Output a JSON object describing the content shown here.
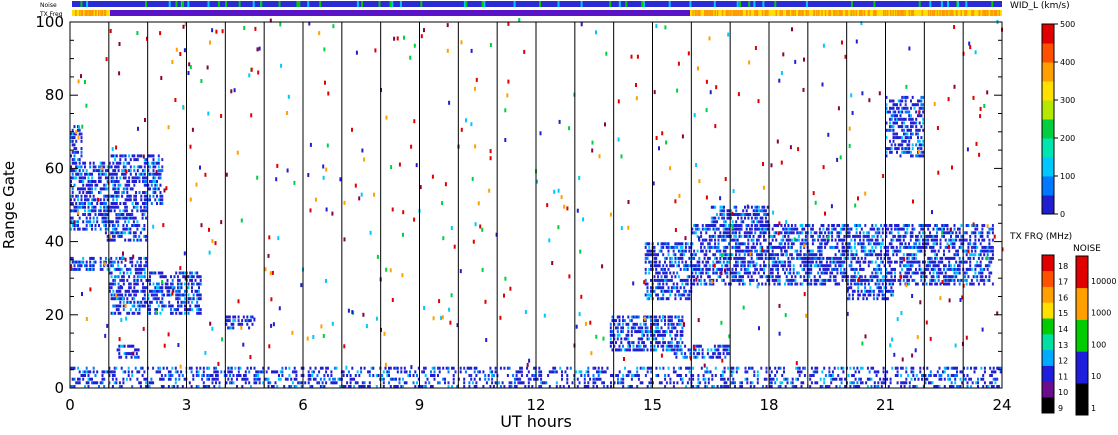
{
  "chart_data": {
    "type": "heatmap",
    "title": "",
    "xlabel": "UT hours",
    "ylabel": "Range Gate",
    "xlim": [
      0,
      24
    ],
    "ylim": [
      0,
      100
    ],
    "x_ticks": [
      0,
      3,
      6,
      9,
      12,
      15,
      18,
      21,
      24
    ],
    "y_ticks": [
      0,
      20,
      40,
      60,
      80,
      100
    ],
    "strips": [
      {
        "label": "Noise",
        "color": "#2b2bd6"
      },
      {
        "label": "TX Freq",
        "color": "#ffe000",
        "low_color": "#ff9900",
        "mid_color": "#5a14c8"
      }
    ],
    "width_colorbar": {
      "title": "WID_L (km/s)",
      "range": [
        0,
        500
      ],
      "ticks": [
        0,
        100,
        200,
        300,
        400,
        500
      ],
      "colors": [
        "#1f1fd0",
        "#0078ff",
        "#00c8ff",
        "#00e6b0",
        "#00d040",
        "#b4e800",
        "#ffe000",
        "#ffa000",
        "#ff5000",
        "#e00000"
      ]
    },
    "freq_colorbar": {
      "title": "TX FRQ (MHz)",
      "levels": [
        "9",
        "10",
        "11",
        "12",
        "13",
        "14",
        "15",
        "16",
        "17",
        "18"
      ],
      "colors": [
        "#000000",
        "#6a0d8c",
        "#1e1edc",
        "#00aaff",
        "#00e0a0",
        "#00cc00",
        "#ffe000",
        "#ffa000",
        "#ff5000",
        "#e00000"
      ]
    },
    "noise_colorbar": {
      "title": "NOISE",
      "levels": [
        "1",
        "10",
        "100",
        "1000",
        "10000"
      ],
      "colors": [
        "#000000",
        "#1e1edc",
        "#00cc00",
        "#ffa000",
        "#e00000"
      ]
    },
    "echo_regions": [
      {
        "t": [
          0.0,
          0.3
        ],
        "g": [
          58,
          72
        ]
      },
      {
        "t": [
          0.0,
          1.0
        ],
        "g": [
          43,
          62
        ]
      },
      {
        "t": [
          0.0,
          2.0
        ],
        "g": [
          32,
          36
        ]
      },
      {
        "t": [
          0.9,
          2.0
        ],
        "g": [
          40,
          50
        ]
      },
      {
        "t": [
          1.0,
          2.4
        ],
        "g": [
          50,
          64
        ]
      },
      {
        "t": [
          1.0,
          3.4
        ],
        "g": [
          20,
          32
        ]
      },
      {
        "t": [
          1.2,
          1.8
        ],
        "g": [
          8,
          12
        ]
      },
      {
        "t": [
          4.0,
          4.7
        ],
        "g": [
          16,
          20
        ]
      },
      {
        "t": [
          13.9,
          15.8
        ],
        "g": [
          10,
          20
        ]
      },
      {
        "t": [
          15.5,
          17.0
        ],
        "g": [
          8,
          12
        ]
      },
      {
        "t": [
          14.8,
          16.0
        ],
        "g": [
          24,
          40
        ]
      },
      {
        "t": [
          16.0,
          23.8
        ],
        "g": [
          28,
          45
        ]
      },
      {
        "t": [
          20.0,
          21.2
        ],
        "g": [
          24,
          30
        ]
      },
      {
        "t": [
          16.5,
          18.0
        ],
        "g": [
          43,
          50
        ]
      },
      {
        "t": [
          0.0,
          24.0
        ],
        "g": [
          0,
          6
        ]
      },
      {
        "t": [
          21.0,
          22.0
        ],
        "g": [
          63,
          80
        ]
      }
    ]
  }
}
